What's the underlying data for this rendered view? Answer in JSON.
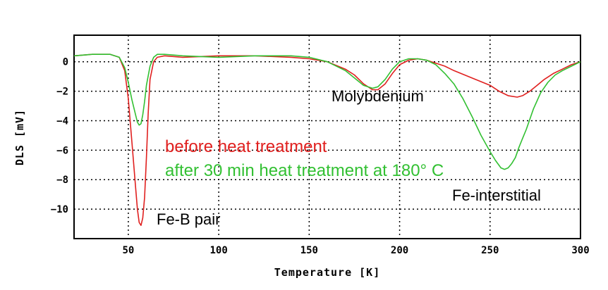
{
  "chart_data": {
    "type": "line",
    "title": "",
    "xlabel": "Temperature [K]",
    "ylabel": "DLS [mV]",
    "xlim": [
      20,
      300
    ],
    "ylim": [
      -12,
      1.8
    ],
    "x_ticks": [
      50,
      100,
      150,
      200,
      250,
      300
    ],
    "y_ticks": [
      0,
      -2,
      -4,
      -6,
      -8,
      -10
    ],
    "x_tick_labels": [
      "50",
      "100",
      "150",
      "200",
      "250",
      "300"
    ],
    "y_tick_labels": [
      "0",
      "−2",
      "−4",
      "−6",
      "−8",
      "−10"
    ],
    "grid": true,
    "series": [
      {
        "name": "before heat treatment",
        "color": "#e0201f",
        "x": [
          20,
          30,
          40,
          45,
          48,
          50,
          52,
          54,
          55,
          56,
          57,
          58,
          59,
          60,
          61,
          62,
          64,
          66,
          70,
          80,
          100,
          120,
          140,
          150,
          160,
          170,
          175,
          180,
          185,
          188,
          192,
          196,
          200,
          205,
          210,
          215,
          220,
          225,
          230,
          240,
          250,
          255,
          260,
          265,
          268,
          272,
          276,
          280,
          285,
          290,
          295,
          300
        ],
        "y": [
          0.4,
          0.5,
          0.5,
          0.3,
          -0.6,
          -2.5,
          -5.5,
          -8.5,
          -10.0,
          -10.9,
          -11.1,
          -10.6,
          -9.2,
          -6.5,
          -3.5,
          -1.2,
          0.0,
          0.3,
          0.4,
          0.3,
          0.4,
          0.4,
          0.3,
          0.2,
          0.0,
          -0.5,
          -0.9,
          -1.5,
          -1.9,
          -1.9,
          -1.5,
          -0.8,
          -0.2,
          0.1,
          0.2,
          0.1,
          -0.1,
          -0.3,
          -0.6,
          -1.1,
          -1.6,
          -2.0,
          -2.3,
          -2.4,
          -2.3,
          -2.0,
          -1.6,
          -1.2,
          -0.8,
          -0.5,
          -0.2,
          0.0
        ]
      },
      {
        "name": "after 30 min heat treatment at 180° C",
        "color": "#32c032",
        "x": [
          20,
          30,
          40,
          45,
          48,
          50,
          52,
          54,
          55,
          56,
          57,
          58,
          59,
          60,
          62,
          64,
          66,
          70,
          80,
          100,
          120,
          140,
          150,
          160,
          170,
          175,
          180,
          185,
          188,
          192,
          196,
          200,
          205,
          210,
          215,
          220,
          225,
          230,
          235,
          240,
          245,
          250,
          253,
          256,
          258,
          260,
          262,
          264,
          266,
          268,
          270,
          274,
          278,
          282,
          286,
          290,
          295,
          300
        ],
        "y": [
          0.4,
          0.5,
          0.5,
          0.3,
          -0.4,
          -1.4,
          -2.6,
          -3.6,
          -4.1,
          -4.3,
          -4.2,
          -3.6,
          -2.7,
          -1.6,
          -0.3,
          0.3,
          0.5,
          0.5,
          0.4,
          0.3,
          0.4,
          0.4,
          0.3,
          0.0,
          -0.6,
          -1.1,
          -1.6,
          -1.8,
          -1.7,
          -1.2,
          -0.5,
          0.0,
          0.2,
          0.2,
          0.1,
          -0.2,
          -0.8,
          -1.5,
          -2.5,
          -3.7,
          -5.0,
          -6.1,
          -6.7,
          -7.2,
          -7.3,
          -7.2,
          -6.9,
          -6.5,
          -5.8,
          -5.2,
          -4.6,
          -3.2,
          -2.1,
          -1.4,
          -0.9,
          -0.6,
          -0.3,
          0.0
        ]
      }
    ],
    "annotations": [
      {
        "text": "Fe-B pair",
        "x": 60,
        "y": -10.8
      },
      {
        "text": "Molybdenium",
        "x": 197,
        "y": -3.2
      },
      {
        "text": "Fe-interstitial",
        "x": 278,
        "y": -9.1
      }
    ],
    "legend": [
      {
        "text": "before heat treatment",
        "color": "#e0201f"
      },
      {
        "text": "after 30 min heat treatment at 180°  C",
        "color": "#32c032"
      }
    ],
    "legend_placement": "center"
  }
}
